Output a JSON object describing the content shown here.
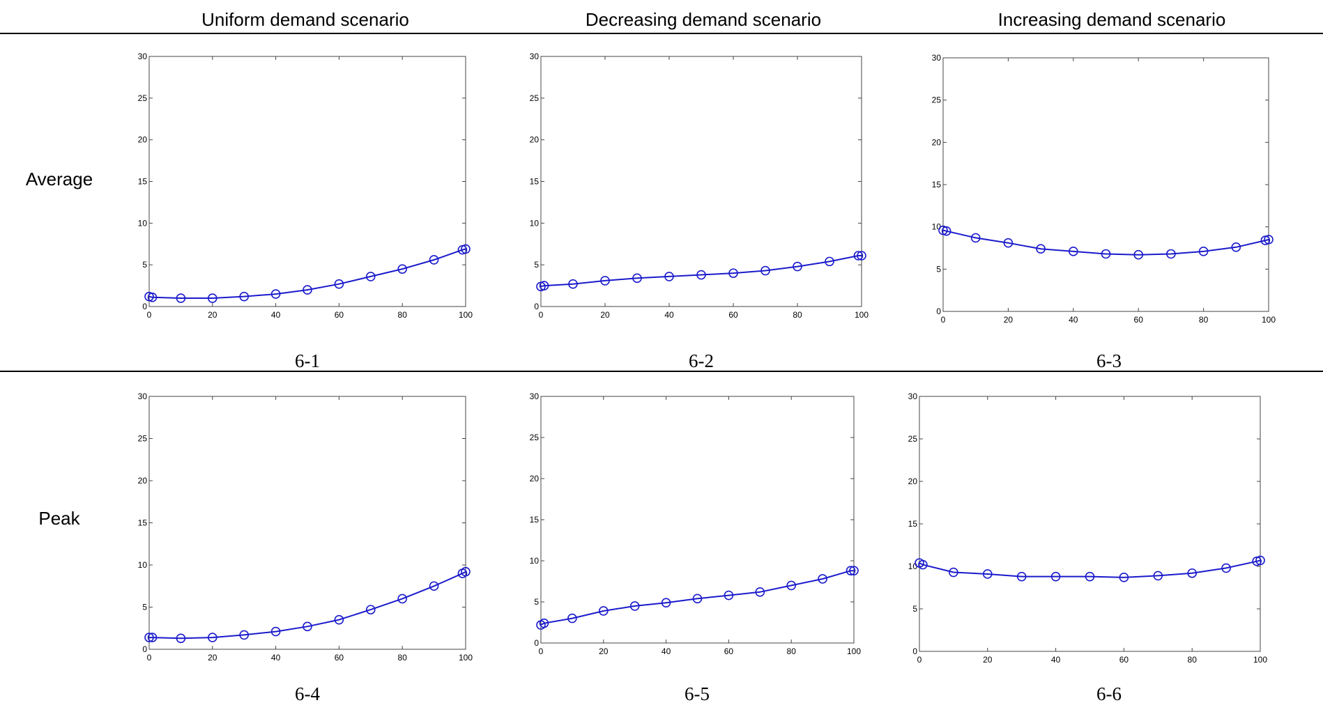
{
  "headers": {
    "col1": "Uniform demand scenario",
    "col2": "Decreasing demand scenario",
    "col3": "Increasing demand scenario"
  },
  "rows": {
    "row1": "Average",
    "row2": "Peak"
  },
  "captions": [
    "6-1",
    "6-2",
    "6-3",
    "6-4",
    "6-5",
    "6-6"
  ],
  "line_color": "#1a1acc",
  "chart_data": [
    {
      "type": "line",
      "xlim": [
        0,
        100
      ],
      "ylim": [
        0,
        30
      ],
      "xticks": [
        0,
        20,
        40,
        60,
        80,
        100
      ],
      "yticks": [
        0,
        5,
        10,
        15,
        20,
        25,
        30
      ],
      "x": [
        0,
        1,
        10,
        20,
        30,
        40,
        50,
        60,
        70,
        80,
        90,
        99,
        100
      ],
      "series": [
        {
          "values": [
            1.2,
            1.1,
            1.0,
            1.0,
            1.2,
            1.5,
            2.0,
            2.7,
            3.6,
            4.5,
            5.6,
            6.8,
            6.9
          ]
        }
      ]
    },
    {
      "type": "line",
      "xlim": [
        0,
        100
      ],
      "ylim": [
        0,
        30
      ],
      "xticks": [
        0,
        20,
        40,
        60,
        80,
        100
      ],
      "yticks": [
        0,
        5,
        10,
        15,
        20,
        25,
        30
      ],
      "x": [
        0,
        1,
        10,
        20,
        30,
        40,
        50,
        60,
        70,
        80,
        90,
        99,
        100
      ],
      "series": [
        {
          "values": [
            2.4,
            2.5,
            2.7,
            3.1,
            3.4,
            3.6,
            3.8,
            4.0,
            4.3,
            4.8,
            5.4,
            6.1,
            6.1
          ]
        }
      ]
    },
    {
      "type": "line",
      "xlim": [
        0,
        100
      ],
      "ylim": [
        0,
        30
      ],
      "xticks": [
        0,
        20,
        40,
        60,
        80,
        100
      ],
      "yticks": [
        0,
        5,
        10,
        15,
        20,
        25,
        30
      ],
      "x": [
        0,
        1,
        10,
        20,
        30,
        40,
        50,
        60,
        70,
        80,
        90,
        99,
        100
      ],
      "series": [
        {
          "values": [
            9.6,
            9.5,
            8.7,
            8.1,
            7.4,
            7.1,
            6.8,
            6.7,
            6.8,
            7.1,
            7.6,
            8.4,
            8.5
          ]
        }
      ]
    },
    {
      "type": "line",
      "xlim": [
        0,
        100
      ],
      "ylim": [
        0,
        30
      ],
      "xticks": [
        0,
        20,
        40,
        60,
        80,
        100
      ],
      "yticks": [
        0,
        5,
        10,
        15,
        20,
        25,
        30
      ],
      "x": [
        0,
        1,
        10,
        20,
        30,
        40,
        50,
        60,
        70,
        80,
        90,
        99,
        100
      ],
      "series": [
        {
          "values": [
            1.4,
            1.4,
            1.3,
            1.4,
            1.7,
            2.1,
            2.7,
            3.5,
            4.7,
            6.0,
            7.5,
            9.0,
            9.2
          ]
        }
      ]
    },
    {
      "type": "line",
      "xlim": [
        0,
        100
      ],
      "ylim": [
        0,
        30
      ],
      "xticks": [
        0,
        20,
        40,
        60,
        80,
        100
      ],
      "yticks": [
        0,
        5,
        10,
        15,
        20,
        25,
        30
      ],
      "x": [
        0,
        1,
        10,
        20,
        30,
        40,
        50,
        60,
        70,
        80,
        90,
        99,
        100
      ],
      "series": [
        {
          "values": [
            2.2,
            2.4,
            3.0,
            3.9,
            4.5,
            4.9,
            5.4,
            5.8,
            6.2,
            7.0,
            7.8,
            8.8,
            8.8
          ]
        }
      ]
    },
    {
      "type": "line",
      "xlim": [
        0,
        100
      ],
      "ylim": [
        0,
        30
      ],
      "xticks": [
        0,
        20,
        40,
        60,
        80,
        100
      ],
      "yticks": [
        0,
        5,
        10,
        15,
        20,
        25,
        30
      ],
      "x": [
        0,
        1,
        10,
        20,
        30,
        40,
        50,
        60,
        70,
        80,
        90,
        99,
        100
      ],
      "series": [
        {
          "values": [
            10.4,
            10.2,
            9.3,
            9.1,
            8.8,
            8.8,
            8.8,
            8.7,
            8.9,
            9.2,
            9.8,
            10.6,
            10.7
          ]
        }
      ]
    }
  ]
}
